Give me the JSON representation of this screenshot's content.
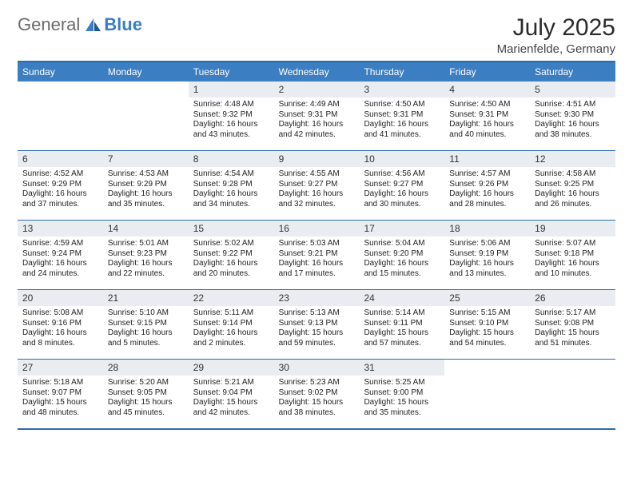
{
  "logo": {
    "text1": "General",
    "text2": "Blue"
  },
  "colors": {
    "brand_blue": "#3c7ec2",
    "rule_blue": "#2b6bb0",
    "daynum_bg": "#e9edf1",
    "text": "#222222",
    "heading": "#2b2b2b",
    "background": "#ffffff"
  },
  "heading": {
    "title": "July 2025",
    "location": "Marienfelde, Germany"
  },
  "layout": {
    "columns": 7,
    "rows": 5,
    "first_weekday_index": 2,
    "days_in_month": 31
  },
  "day_headers": [
    "Sunday",
    "Monday",
    "Tuesday",
    "Wednesday",
    "Thursday",
    "Friday",
    "Saturday"
  ],
  "days": [
    {
      "n": 1,
      "sunrise": "4:48 AM",
      "sunset": "9:32 PM",
      "daylight": "16 hours and 43 minutes."
    },
    {
      "n": 2,
      "sunrise": "4:49 AM",
      "sunset": "9:31 PM",
      "daylight": "16 hours and 42 minutes."
    },
    {
      "n": 3,
      "sunrise": "4:50 AM",
      "sunset": "9:31 PM",
      "daylight": "16 hours and 41 minutes."
    },
    {
      "n": 4,
      "sunrise": "4:50 AM",
      "sunset": "9:31 PM",
      "daylight": "16 hours and 40 minutes."
    },
    {
      "n": 5,
      "sunrise": "4:51 AM",
      "sunset": "9:30 PM",
      "daylight": "16 hours and 38 minutes."
    },
    {
      "n": 6,
      "sunrise": "4:52 AM",
      "sunset": "9:29 PM",
      "daylight": "16 hours and 37 minutes."
    },
    {
      "n": 7,
      "sunrise": "4:53 AM",
      "sunset": "9:29 PM",
      "daylight": "16 hours and 35 minutes."
    },
    {
      "n": 8,
      "sunrise": "4:54 AM",
      "sunset": "9:28 PM",
      "daylight": "16 hours and 34 minutes."
    },
    {
      "n": 9,
      "sunrise": "4:55 AM",
      "sunset": "9:27 PM",
      "daylight": "16 hours and 32 minutes."
    },
    {
      "n": 10,
      "sunrise": "4:56 AM",
      "sunset": "9:27 PM",
      "daylight": "16 hours and 30 minutes."
    },
    {
      "n": 11,
      "sunrise": "4:57 AM",
      "sunset": "9:26 PM",
      "daylight": "16 hours and 28 minutes."
    },
    {
      "n": 12,
      "sunrise": "4:58 AM",
      "sunset": "9:25 PM",
      "daylight": "16 hours and 26 minutes."
    },
    {
      "n": 13,
      "sunrise": "4:59 AM",
      "sunset": "9:24 PM",
      "daylight": "16 hours and 24 minutes."
    },
    {
      "n": 14,
      "sunrise": "5:01 AM",
      "sunset": "9:23 PM",
      "daylight": "16 hours and 22 minutes."
    },
    {
      "n": 15,
      "sunrise": "5:02 AM",
      "sunset": "9:22 PM",
      "daylight": "16 hours and 20 minutes."
    },
    {
      "n": 16,
      "sunrise": "5:03 AM",
      "sunset": "9:21 PM",
      "daylight": "16 hours and 17 minutes."
    },
    {
      "n": 17,
      "sunrise": "5:04 AM",
      "sunset": "9:20 PM",
      "daylight": "16 hours and 15 minutes."
    },
    {
      "n": 18,
      "sunrise": "5:06 AM",
      "sunset": "9:19 PM",
      "daylight": "16 hours and 13 minutes."
    },
    {
      "n": 19,
      "sunrise": "5:07 AM",
      "sunset": "9:18 PM",
      "daylight": "16 hours and 10 minutes."
    },
    {
      "n": 20,
      "sunrise": "5:08 AM",
      "sunset": "9:16 PM",
      "daylight": "16 hours and 8 minutes."
    },
    {
      "n": 21,
      "sunrise": "5:10 AM",
      "sunset": "9:15 PM",
      "daylight": "16 hours and 5 minutes."
    },
    {
      "n": 22,
      "sunrise": "5:11 AM",
      "sunset": "9:14 PM",
      "daylight": "16 hours and 2 minutes."
    },
    {
      "n": 23,
      "sunrise": "5:13 AM",
      "sunset": "9:13 PM",
      "daylight": "15 hours and 59 minutes."
    },
    {
      "n": 24,
      "sunrise": "5:14 AM",
      "sunset": "9:11 PM",
      "daylight": "15 hours and 57 minutes."
    },
    {
      "n": 25,
      "sunrise": "5:15 AM",
      "sunset": "9:10 PM",
      "daylight": "15 hours and 54 minutes."
    },
    {
      "n": 26,
      "sunrise": "5:17 AM",
      "sunset": "9:08 PM",
      "daylight": "15 hours and 51 minutes."
    },
    {
      "n": 27,
      "sunrise": "5:18 AM",
      "sunset": "9:07 PM",
      "daylight": "15 hours and 48 minutes."
    },
    {
      "n": 28,
      "sunrise": "5:20 AM",
      "sunset": "9:05 PM",
      "daylight": "15 hours and 45 minutes."
    },
    {
      "n": 29,
      "sunrise": "5:21 AM",
      "sunset": "9:04 PM",
      "daylight": "15 hours and 42 minutes."
    },
    {
      "n": 30,
      "sunrise": "5:23 AM",
      "sunset": "9:02 PM",
      "daylight": "15 hours and 38 minutes."
    },
    {
      "n": 31,
      "sunrise": "5:25 AM",
      "sunset": "9:00 PM",
      "daylight": "15 hours and 35 minutes."
    }
  ],
  "labels": {
    "sunrise": "Sunrise:",
    "sunset": "Sunset:",
    "daylight": "Daylight:"
  }
}
